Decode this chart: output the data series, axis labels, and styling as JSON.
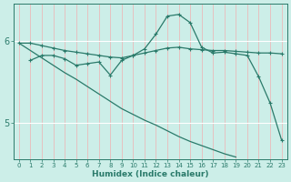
{
  "background_color": "#cceee8",
  "grid_color": "#f5c8c8",
  "line_color": "#2a7a6a",
  "xlabel": "Humidex (Indice chaleur)",
  "ylim": [
    4.55,
    6.45
  ],
  "yticks": [
    5,
    6
  ],
  "xlim": [
    -0.5,
    23.5
  ],
  "xticks": [
    0,
    1,
    2,
    3,
    4,
    5,
    6,
    7,
    8,
    9,
    10,
    11,
    12,
    13,
    14,
    15,
    16,
    17,
    18,
    19,
    20,
    21,
    22,
    23
  ],
  "line1_x": [
    0,
    1,
    2,
    3,
    4,
    5,
    6,
    7,
    8,
    9,
    10,
    11,
    12,
    13,
    14,
    15,
    16,
    17,
    18,
    19,
    20,
    21,
    22,
    23
  ],
  "line1_y": [
    5.97,
    5.97,
    5.94,
    5.91,
    5.88,
    5.86,
    5.84,
    5.82,
    5.8,
    5.79,
    5.82,
    5.85,
    5.88,
    5.91,
    5.92,
    5.9,
    5.89,
    5.88,
    5.88,
    5.87,
    5.86,
    5.85,
    5.85,
    5.84
  ],
  "line2_x": [
    1,
    2,
    3,
    4,
    5,
    6,
    7,
    8,
    9,
    10,
    11,
    12,
    13,
    14,
    15,
    16,
    17,
    18,
    19,
    20,
    21,
    22,
    23
  ],
  "line2_y": [
    5.76,
    5.82,
    5.82,
    5.78,
    5.7,
    5.72,
    5.74,
    5.58,
    5.76,
    5.82,
    5.9,
    6.08,
    6.3,
    6.32,
    6.22,
    5.92,
    5.85,
    5.86,
    5.84,
    5.82,
    5.56,
    5.24,
    4.79
  ],
  "line3_x": [
    0,
    1,
    2,
    3,
    4,
    5,
    6,
    7,
    8,
    9,
    10,
    11,
    12,
    13,
    14,
    15,
    16,
    17,
    18,
    19,
    20,
    21,
    22,
    23
  ],
  "line3_y": [
    5.97,
    5.88,
    5.79,
    5.7,
    5.61,
    5.53,
    5.44,
    5.35,
    5.26,
    5.17,
    5.1,
    5.03,
    4.97,
    4.9,
    4.83,
    4.77,
    4.72,
    4.67,
    4.62,
    4.58,
    null,
    null,
    null,
    null
  ]
}
